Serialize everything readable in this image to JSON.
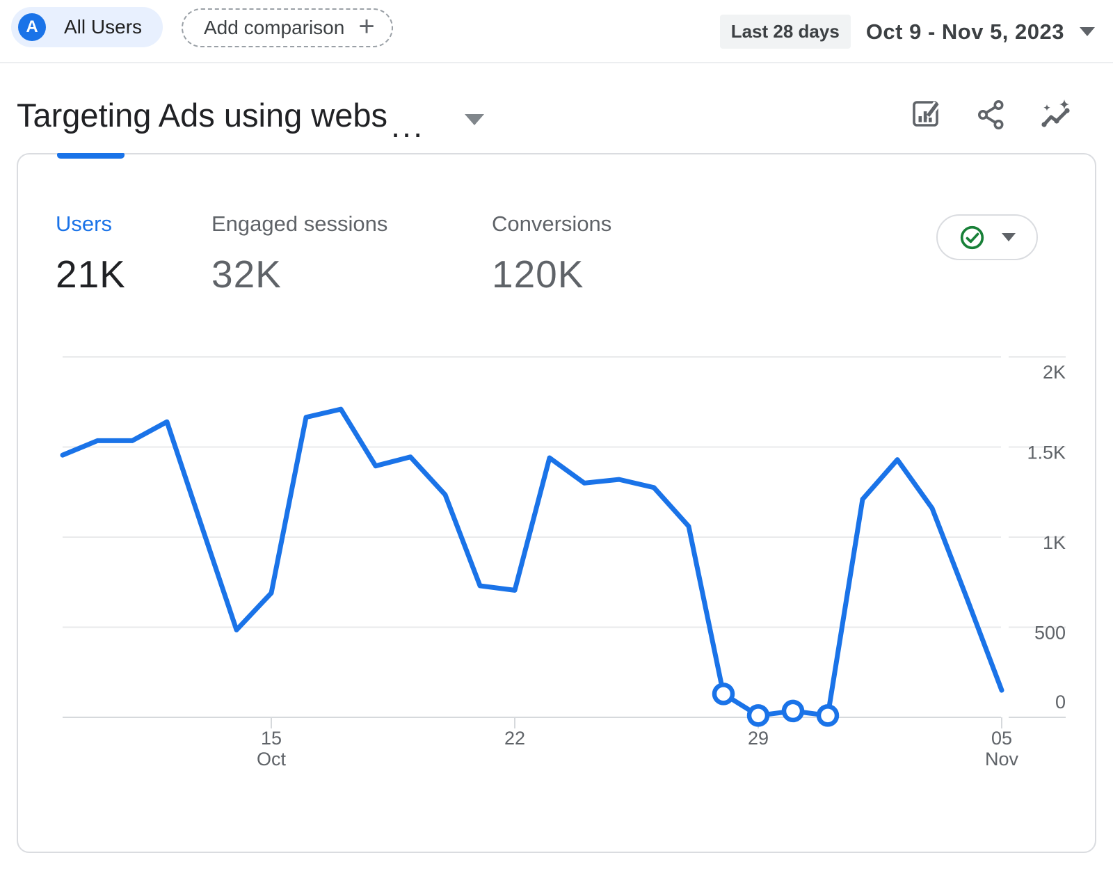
{
  "header": {
    "audience_chip": {
      "avatar_letter": "A",
      "label": "All Users"
    },
    "add_comparison": {
      "label": "Add comparison",
      "plus": "+"
    },
    "date_range": {
      "preset": "Last 28 days",
      "range": "Oct 9 - Nov 5, 2023"
    }
  },
  "report": {
    "title": "Targeting Ads using webs",
    "title_truncation": "...",
    "toolbar_icons": [
      "customize-report",
      "share",
      "insights"
    ]
  },
  "scorecards": [
    {
      "label": "Users",
      "value": "21K",
      "selected": true
    },
    {
      "label": "Engaged sessions",
      "value": "32K",
      "selected": false
    },
    {
      "label": "Conversions",
      "value": "120K",
      "selected": false
    }
  ],
  "chart_status": {
    "icon": "check-circle",
    "state": "ok"
  },
  "colors": {
    "accent_blue": "#1a73e8",
    "chip_blue_bg": "#e8f0fe",
    "status_green": "#188038",
    "text_dark": "#202124",
    "text_gray": "#5f6368",
    "border_gray": "#dadce0",
    "gridline": "#e9eaeb"
  },
  "chart_data": {
    "type": "line",
    "title": "",
    "xlabel": "",
    "ylabel": "",
    "ylim": [
      0,
      2000
    ],
    "grid": true,
    "legend_position": "none",
    "y_axis_side": "right",
    "y_ticks": [
      {
        "value": 0,
        "label": "0"
      },
      {
        "value": 500,
        "label": "500"
      },
      {
        "value": 1000,
        "label": "1K"
      },
      {
        "value": 1500,
        "label": "1.5K"
      },
      {
        "value": 2000,
        "label": "2K"
      }
    ],
    "x_tick_positions": [
      {
        "index": 6,
        "lines": [
          "15",
          "Oct"
        ]
      },
      {
        "index": 13,
        "lines": [
          "22"
        ]
      },
      {
        "index": 20,
        "lines": [
          "29"
        ]
      },
      {
        "index": 27,
        "lines": [
          "05",
          "Nov"
        ]
      }
    ],
    "series": [
      {
        "name": "Users",
        "color": "#1a73e8",
        "x": [
          "Oct 9",
          "Oct 10",
          "Oct 11",
          "Oct 12",
          "Oct 13",
          "Oct 14",
          "Oct 15",
          "Oct 16",
          "Oct 17",
          "Oct 18",
          "Oct 19",
          "Oct 20",
          "Oct 21",
          "Oct 22",
          "Oct 23",
          "Oct 24",
          "Oct 25",
          "Oct 26",
          "Oct 27",
          "Oct 28",
          "Oct 29",
          "Oct 30",
          "Oct 31",
          "Nov 1",
          "Nov 2",
          "Nov 3",
          "Nov 4",
          "Nov 5"
        ],
        "values": [
          1455,
          1535,
          1535,
          1640,
          1060,
          485,
          690,
          1665,
          1710,
          1395,
          1445,
          1235,
          730,
          705,
          1440,
          1300,
          1320,
          1275,
          1060,
          130,
          10,
          35,
          10,
          1210,
          1430,
          1160,
          660,
          150
        ],
        "highlighted_point_indices": [
          19,
          20,
          21,
          22
        ]
      }
    ]
  }
}
